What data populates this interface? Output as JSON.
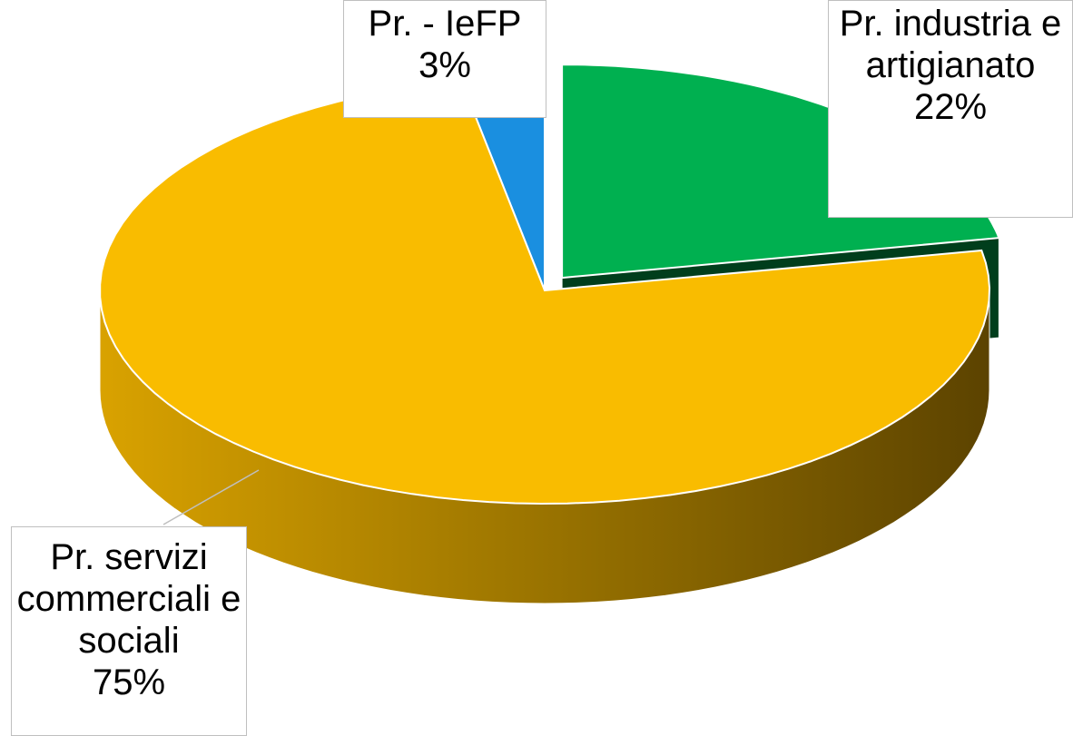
{
  "chart_data": {
    "type": "pie",
    "categories": [
      "Pr. - IeFP",
      "Pr. industria e artigianato",
      "Pr. servizi commerciali e sociali"
    ],
    "values": [
      3,
      22,
      75
    ],
    "value_labels": [
      "3%",
      "22%",
      "75%"
    ],
    "colors": [
      "#1a8fe0",
      "#00b050",
      "#f9bc00"
    ]
  }
}
